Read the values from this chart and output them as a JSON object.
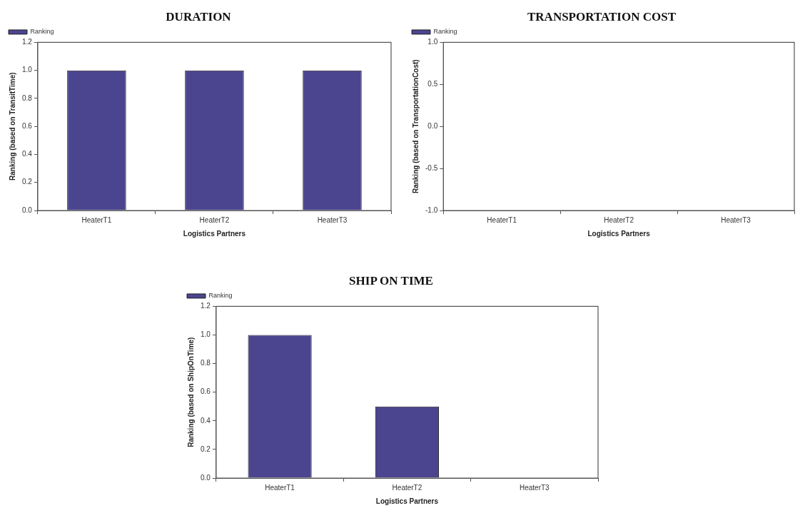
{
  "chart_data": [
    {
      "type": "bar",
      "title": "DURATION",
      "xlabel": "Logistics Partners",
      "ylabel": "Ranking (based on TransitTime)",
      "categories": [
        "HeaterT1",
        "HeaterT2",
        "HeaterT3"
      ],
      "series": [
        {
          "name": "Ranking",
          "color": "#4b4590",
          "values": [
            1,
            1,
            1
          ]
        }
      ],
      "ylim": [
        0,
        1.2
      ],
      "yticks": [
        {
          "value": 0,
          "label": "0.0"
        },
        0.2,
        0.4,
        0.6,
        0.8,
        {
          "value": 1,
          "label": "1.0"
        },
        1.2
      ],
      "grid": false,
      "legend": "top left"
    },
    {
      "type": "bar",
      "title": "TRANSPORTATION COST",
      "xlabel": "Logistics Partners",
      "ylabel": "Ranking (based on TransportationCost)",
      "categories": [
        "HeaterT1",
        "HeaterT2",
        "HeaterT3"
      ],
      "series": [
        {
          "name": "Ranking",
          "color": "#4b4590",
          "values": [
            0,
            0,
            0
          ]
        }
      ],
      "ylim": [
        -1,
        1
      ],
      "yticks": [
        {
          "value": -1,
          "label": "-1.0"
        },
        -0.5,
        {
          "value": 0,
          "label": "0.0"
        },
        0.5,
        {
          "value": 1,
          "label": "1.0"
        }
      ],
      "grid": false,
      "legend": "top left"
    },
    {
      "type": "bar",
      "title": "SHIP ON TIME",
      "xlabel": "Logistics Partners",
      "ylabel": "Ranking (based on ShipOnTime)",
      "categories": [
        "HeaterT1",
        "HeaterT2",
        "HeaterT3"
      ],
      "series": [
        {
          "name": "Ranking",
          "color": "#4b4590",
          "values": [
            1,
            0.5,
            0
          ]
        }
      ],
      "ylim": [
        0,
        1.2
      ],
      "yticks": [
        {
          "value": 0,
          "label": "0.0"
        },
        0.2,
        0.4,
        0.6,
        0.8,
        {
          "value": 1,
          "label": "1.0"
        },
        1.2
      ],
      "grid": false,
      "legend": "top left"
    }
  ]
}
